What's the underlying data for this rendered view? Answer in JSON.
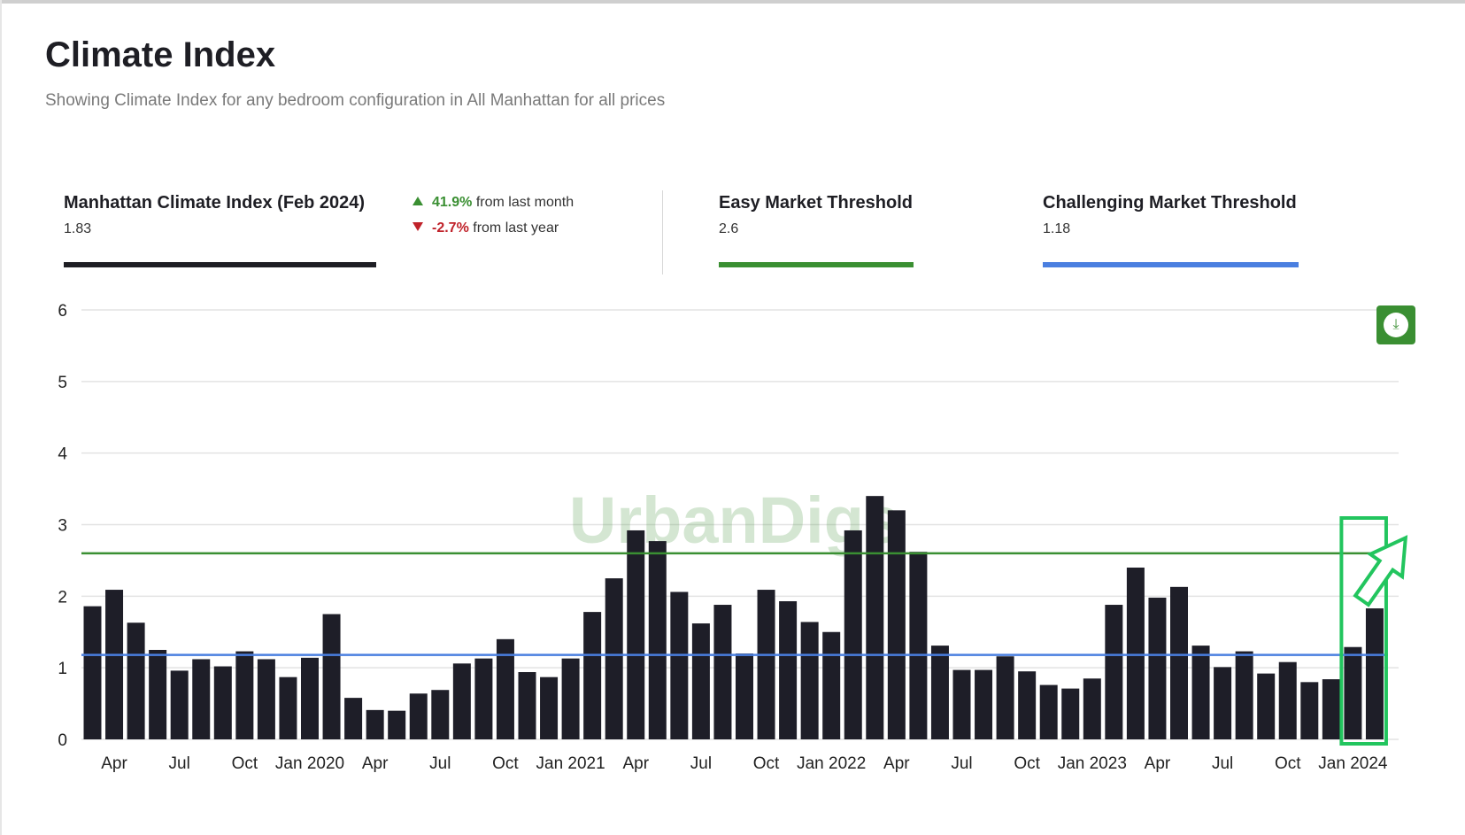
{
  "page": {
    "title": "Climate Index",
    "subtitle": "Showing Climate Index for any bedroom configuration in All Manhattan for all prices"
  },
  "stats": {
    "index": {
      "label": "Manhattan Climate Index  (Feb 2024)",
      "value": "1.83",
      "color": "#1e1e24"
    },
    "month_change": {
      "value": "41.9%",
      "text": "from last month"
    },
    "year_change": {
      "value": "-2.7%",
      "text": "from last year"
    },
    "easy": {
      "label": "Easy Market Threshold",
      "value": "2.6",
      "color": "#3a8f32"
    },
    "challenging": {
      "label": "Challenging Market Threshold",
      "value": "1.18",
      "color": "#4a7fe0"
    }
  },
  "watermark": "UrbanDigs",
  "download_icon": "download-icon",
  "chart_data": {
    "type": "bar",
    "title": "",
    "xlabel": "",
    "ylabel": "",
    "ylim": [
      0,
      6
    ],
    "yticks": [
      0,
      1,
      2,
      3,
      4,
      5,
      6
    ],
    "grid": true,
    "bar_color": "#1e1e28",
    "x_tick_labels": [
      {
        "index": 1,
        "label": "Apr"
      },
      {
        "index": 4,
        "label": "Jul"
      },
      {
        "index": 7,
        "label": "Oct"
      },
      {
        "index": 10,
        "label": "Jan 2020"
      },
      {
        "index": 13,
        "label": "Apr"
      },
      {
        "index": 16,
        "label": "Jul"
      },
      {
        "index": 19,
        "label": "Oct"
      },
      {
        "index": 22,
        "label": "Jan 2021"
      },
      {
        "index": 25,
        "label": "Apr"
      },
      {
        "index": 28,
        "label": "Jul"
      },
      {
        "index": 31,
        "label": "Oct"
      },
      {
        "index": 34,
        "label": "Jan 2022"
      },
      {
        "index": 37,
        "label": "Apr"
      },
      {
        "index": 40,
        "label": "Jul"
      },
      {
        "index": 43,
        "label": "Oct"
      },
      {
        "index": 46,
        "label": "Jan 2023"
      },
      {
        "index": 49,
        "label": "Apr"
      },
      {
        "index": 52,
        "label": "Jul"
      },
      {
        "index": 55,
        "label": "Oct"
      },
      {
        "index": 58,
        "label": "Jan 2024"
      }
    ],
    "values": [
      1.86,
      2.09,
      1.63,
      1.25,
      0.96,
      1.12,
      1.02,
      1.23,
      1.12,
      0.87,
      1.14,
      1.75,
      0.58,
      0.41,
      0.4,
      0.64,
      0.69,
      1.06,
      1.13,
      1.4,
      0.94,
      0.87,
      1.13,
      1.78,
      2.25,
      2.92,
      2.77,
      2.06,
      1.62,
      1.88,
      1.2,
      2.09,
      1.93,
      1.64,
      1.5,
      2.92,
      3.4,
      3.2,
      2.62,
      1.31,
      0.97,
      0.97,
      1.16,
      0.95,
      0.76,
      0.71,
      0.85,
      1.88,
      2.4,
      1.98,
      2.13,
      1.31,
      1.01,
      1.23,
      0.92,
      1.08,
      0.8,
      0.84,
      1.29,
      1.83
    ],
    "thresholds": [
      {
        "name": "Easy Market Threshold",
        "value": 2.6,
        "color": "#3a8f32"
      },
      {
        "name": "Challenging Market Threshold",
        "value": 1.18,
        "color": "#4a7fe0"
      }
    ],
    "highlight": {
      "from_index": 58,
      "to_index": 59,
      "color": "#22c55e"
    }
  }
}
